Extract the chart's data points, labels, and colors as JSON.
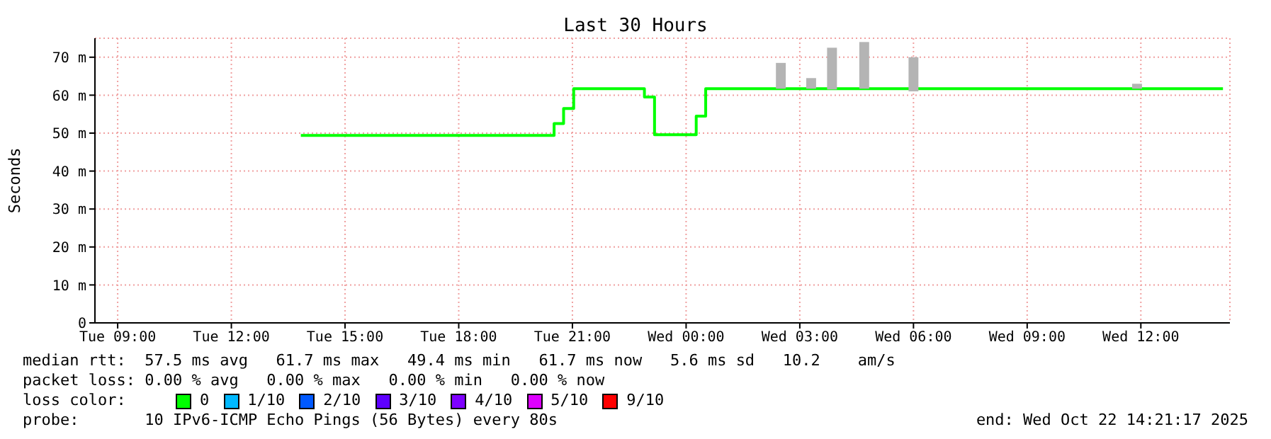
{
  "chart_data": {
    "type": "step",
    "title": "Last 30 Hours",
    "ylabel": "Seconds",
    "legend_title": "loss color:",
    "legend": "bottom",
    "grid": true,
    "xlim": [
      "2025-10-21T08:24",
      "2025-10-22T14:21"
    ],
    "xticks": [
      {
        "value": "2025-10-21T09:00",
        "label": "Tue 09:00"
      },
      {
        "value": "2025-10-21T12:00",
        "label": "Tue 12:00"
      },
      {
        "value": "2025-10-21T15:00",
        "label": "Tue 15:00"
      },
      {
        "value": "2025-10-21T18:00",
        "label": "Tue 18:00"
      },
      {
        "value": "2025-10-21T21:00",
        "label": "Tue 21:00"
      },
      {
        "value": "2025-10-22T00:00",
        "label": "Wed 00:00"
      },
      {
        "value": "2025-10-22T03:00",
        "label": "Wed 03:00"
      },
      {
        "value": "2025-10-22T06:00",
        "label": "Wed 06:00"
      },
      {
        "value": "2025-10-22T09:00",
        "label": "Wed 09:00"
      },
      {
        "value": "2025-10-22T12:00",
        "label": "Wed 12:00"
      }
    ],
    "ylim": [
      0,
      75
    ],
    "yticks": [
      0,
      {
        "value": 10,
        "label": "10 m"
      },
      {
        "value": 20,
        "label": "20 m"
      },
      {
        "value": 30,
        "label": "30 m"
      },
      {
        "value": 40,
        "label": "40 m"
      },
      {
        "value": 50,
        "label": "50 m"
      },
      {
        "value": 60,
        "label": "60 m"
      },
      {
        "value": 70,
        "label": "70 m"
      }
    ],
    "series": [
      {
        "type": "bar",
        "color": "#b4b4b4",
        "x": [
          "2025-10-22T02:30",
          "2025-10-22T03:18",
          "2025-10-22T03:51",
          "2025-10-22T04:42",
          "2025-10-22T06:00",
          "2025-10-22T11:54"
        ],
        "base": [
          61.7,
          61.7,
          61.5,
          61.7,
          61,
          61.7
        ],
        "values": [
          6.8,
          2.8,
          11,
          12.3,
          9,
          1.3
        ]
      },
      {
        "name": "0",
        "color": "#00ff00",
        "x": [
          "2025-10-21T13:50",
          "2025-10-21T20:31",
          "2025-10-21T20:46",
          "2025-10-21T21:02",
          "2025-10-21T22:54",
          "2025-10-21T23:10",
          "2025-10-22T00:16",
          "2025-10-22T00:31",
          "2025-10-22T14:10"
        ],
        "values": [
          49.4,
          52.5,
          56.5,
          61.7,
          59.5,
          49.6,
          54.5,
          61.7,
          61.7
        ]
      },
      {
        "name": "1/10",
        "color": "#00b8ff"
      },
      {
        "name": "2/10",
        "color": "#0059ff"
      },
      {
        "name": "3/10",
        "color": "#5e00ff"
      },
      {
        "name": "4/10",
        "color": "#7e00ff"
      },
      {
        "name": "5/10",
        "color": "#dd00ff"
      },
      {
        "name": "9/10",
        "color": "#ff0000"
      }
    ],
    "annotations": [
      "median rtt:  57.5 ms avg   61.7 ms max   49.4 ms min   61.7 ms now   5.6 ms sd   10.2    am/s",
      "packet loss: 0.00 % avg   0.00 % max   0.00 % min   0.00 % now",
      "probe:       10 IPv6-ICMP Echo Pings (56 Bytes) every 80s",
      "end: Wed Oct 22 14:21:17 2025"
    ]
  }
}
